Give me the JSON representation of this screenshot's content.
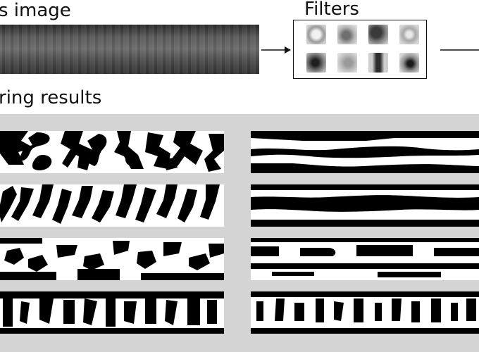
{
  "labels": {
    "input_image": "s image",
    "filters": "Filters",
    "filtering_results": "ring results"
  },
  "filters": {
    "count": 8,
    "patterns": [
      "light-center",
      "gray-blob",
      "dark-blob",
      "light-ring",
      "dark-center",
      "light-smudge",
      "dark-vertical",
      "dark-spot"
    ]
  },
  "results": {
    "rows": 4,
    "columns": 2,
    "left_column": "isotropic-blob-patterns",
    "right_column": "horizontal-band-patterns"
  }
}
